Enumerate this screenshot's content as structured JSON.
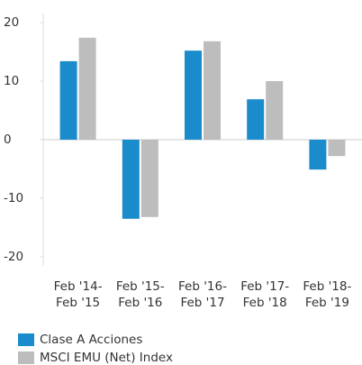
{
  "chart_data": {
    "type": "bar",
    "categories": [
      [
        "Feb '14-",
        "Feb '15"
      ],
      [
        "Feb '15-",
        "Feb '16"
      ],
      [
        "Feb '16-",
        "Feb '17"
      ],
      [
        "Feb '17-",
        "Feb '18"
      ],
      [
        "Feb '18-",
        "Feb '19"
      ]
    ],
    "series": [
      {
        "name": "Clase A Acciones",
        "color": "#1a8ccc",
        "values": [
          13.4,
          -13.5,
          15.2,
          6.9,
          -5.1
        ]
      },
      {
        "name": "MSCI EMU (Net) Index",
        "color": "#bdbdbd",
        "values": [
          17.4,
          -13.2,
          16.8,
          10.0,
          -2.8
        ]
      }
    ],
    "ylim": [
      -20,
      20
    ],
    "yticks": [
      -20,
      -10,
      0,
      10,
      20
    ]
  }
}
